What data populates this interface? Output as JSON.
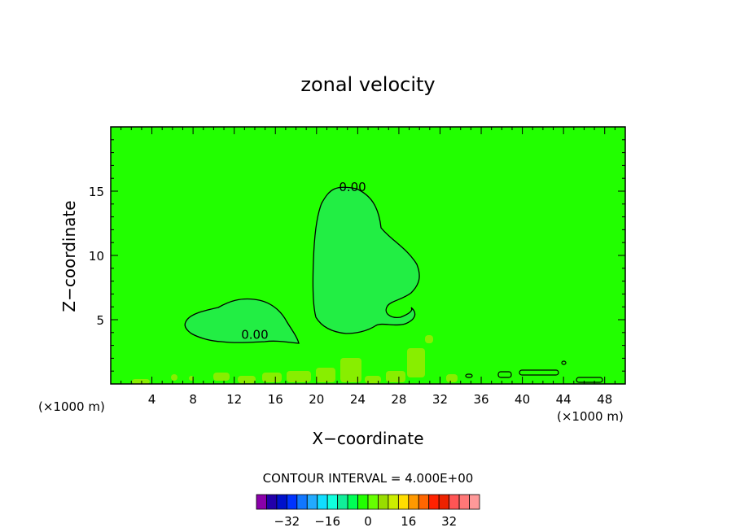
{
  "chart_data": {
    "type": "heatmap",
    "title": "zonal velocity",
    "xlabel": "X−coordinate",
    "ylabel": "Z−coordinate",
    "x_unit_left": "(×1000 m)",
    "x_unit_right": "(×1000 m)",
    "xlim": [
      0,
      50
    ],
    "ylim": [
      0,
      20
    ],
    "x_ticks": [
      4,
      8,
      12,
      16,
      20,
      24,
      28,
      32,
      36,
      40,
      44,
      48
    ],
    "y_ticks": [
      5,
      10,
      15
    ],
    "background_value": 0,
    "colors": {
      "background": "#22ff00",
      "inner_region": "#22ee44",
      "surface_patches": "#88ee00",
      "contour_line": "#000000"
    },
    "contour_labels": [
      {
        "text": "0.00",
        "x": 23.5,
        "y": 15.0
      },
      {
        "text": "0.00",
        "x": 14.0,
        "y": 3.5
      }
    ],
    "contour_interval_text": "CONTOUR INTERVAL = 4.000E+00",
    "colorbar": {
      "colors": [
        "#8a00aa",
        "#2200aa",
        "#0011cc",
        "#0033ff",
        "#1177ff",
        "#22aaff",
        "#11ddff",
        "#11ffdd",
        "#11ee99",
        "#00ff55",
        "#22ff00",
        "#66ff00",
        "#99dd00",
        "#ccee00",
        "#ffdd00",
        "#ff9900",
        "#ff6600",
        "#ff2200",
        "#ee2200",
        "#ff5555",
        "#ff7777",
        "#ff9999"
      ],
      "tick_labels": [
        {
          "text": "−32",
          "value": -32
        },
        {
          "text": "−16",
          "value": -16
        },
        {
          "text": "0",
          "value": 0
        },
        {
          "text": "16",
          "value": 16
        },
        {
          "text": "32",
          "value": 32
        }
      ]
    }
  }
}
